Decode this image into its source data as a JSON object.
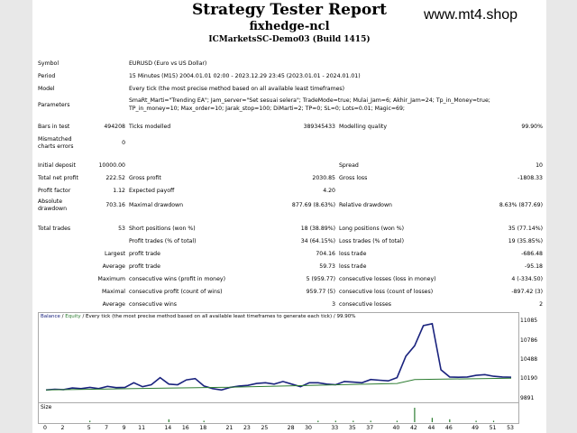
{
  "header": {
    "title": "Strategy Tester Report",
    "expert": "fixhedge-ncl",
    "server": "ICMarketsSC-Demo03 (Build 1415)",
    "watermark": "www.mt4.shop"
  },
  "settings": {
    "symbol_label": "Symbol",
    "symbol": "EURUSD (Euro vs US Dollar)",
    "period_label": "Period",
    "period": "15 Minutes (M15) 2004.01.01 02:00 - 2023.12.29 23:45 (2023.01.01 - 2024.01.01)",
    "model_label": "Model",
    "model": "Every tick (the most precise method based on all available least timeframes)",
    "params_label": "Parameters",
    "params_line1": "SmaRt_Marti=\"Trending EA\"; Jam_server=\"Set sesuai selera\"; TradeMode=true; Mulai_Jam=6; Akhir_Jam=24; Tp_in_Money=true;",
    "params_line2": "TP_in_money=10; Max_order=10; Jarak_stop=100; DiMarti=2; TP=0; SL=0; Lots=0.01; Magic=69;"
  },
  "quality": {
    "bars_label": "Bars in test",
    "bars": "494208",
    "ticks_label": "Ticks modelled",
    "ticks": "389345433",
    "mq_label": "Modelling quality",
    "mq": "99.90%",
    "mismatch_label1": "Mismatched",
    "mismatch_label2": "charts errors",
    "mismatch": "0"
  },
  "results": {
    "deposit_label": "Initial deposit",
    "deposit": "10000.00",
    "spread_label": "Spread",
    "spread": "10",
    "net_label": "Total net profit",
    "net": "222.52",
    "gp_label": "Gross profit",
    "gp": "2030.85",
    "gl_label": "Gross loss",
    "gl": "-1808.33",
    "pf_label": "Profit factor",
    "pf": "1.12",
    "ep_label": "Expected payoff",
    "ep": "4.20",
    "ad_label1": "Absolute",
    "ad_label2": "drawdown",
    "ad": "703.16",
    "md_label": "Maximal drawdown",
    "md": "877.69 (8.63%)",
    "rd_label": "Relative drawdown",
    "rd": "8.63% (877.69)"
  },
  "trades": {
    "total_label": "Total trades",
    "total": "53",
    "short_label": "Short positions (won %)",
    "short": "18 (38.89%)",
    "long_label": "Long positions (won %)",
    "long": "35 (77.14%)",
    "pt_label": "Profit trades (% of total)",
    "pt": "34 (64.15%)",
    "lt_label": "Loss trades (% of total)",
    "lt": "19 (35.85%)",
    "largest": "Largest",
    "average": "Average",
    "maximum": "Maximum",
    "maximal": "Maximal",
    "lpt_label": "profit trade",
    "lpt": "704.16",
    "llt_label": "loss trade",
    "llt": "-686.48",
    "apt_label": "profit trade",
    "apt": "59.73",
    "alt_label": "loss trade",
    "alt": "-95.18",
    "mcw_label": "consecutive wins (profit in money)",
    "mcw": "5 (959.77)",
    "mcl_label": "consecutive losses (loss in money)",
    "mcl": "4 (-334.50)",
    "mxw_label": "consecutive profit (count of wins)",
    "mxw": "959.77 (5)",
    "mxl_label": "consecutive loss (count of losses)",
    "mxl": "-897.42 (3)",
    "acw_label": "consecutive wins",
    "acw": "3",
    "acl_label": "consecutive losses",
    "acl": "2"
  },
  "chart": {
    "caption_balance": "Balance",
    "caption_sep": " / ",
    "caption_equity": "Equity",
    "caption_rest": " / Every tick (the most precise method based on all available least timeframes to generate each tick) / 99.90%",
    "size_label": "Size"
  },
  "chart_data": {
    "type": "line",
    "y_ticks": [
      "11085",
      "10786",
      "10488",
      "10190",
      "9891"
    ],
    "ylim": [
      9891,
      11085
    ],
    "x_ticks": [
      "0",
      "2",
      "5",
      "7",
      "9",
      "11",
      "14",
      "16",
      "18",
      "21",
      "23",
      "25",
      "28",
      "30",
      "33",
      "35",
      "37",
      "40",
      "42",
      "44",
      "46",
      "49",
      "51",
      "53"
    ],
    "xlim": [
      0,
      53
    ],
    "series": [
      {
        "name": "Balance",
        "color": "#1a237e",
        "x": [
          0,
          1,
          2,
          3,
          4,
          5,
          6,
          7,
          8,
          9,
          10,
          11,
          12,
          13,
          14,
          15,
          16,
          17,
          18,
          19,
          20,
          21,
          22,
          23,
          24,
          25,
          26,
          27,
          28,
          29,
          30,
          31,
          32,
          33,
          34,
          35,
          36,
          37,
          38,
          39,
          40,
          41,
          42,
          43,
          44,
          45,
          46,
          47,
          48,
          49,
          50,
          51,
          52,
          53
        ],
        "y": [
          10040,
          10050,
          10045,
          10070,
          10060,
          10080,
          10060,
          10095,
          10075,
          10080,
          10150,
          10090,
          10120,
          10230,
          10130,
          10120,
          10195,
          10215,
          10100,
          10060,
          10040,
          10080,
          10100,
          10110,
          10140,
          10150,
          10130,
          10170,
          10130,
          10090,
          10150,
          10150,
          10130,
          10120,
          10170,
          10160,
          10150,
          10200,
          10190,
          10180,
          10230,
          10560,
          10720,
          11030,
          11060,
          10350,
          10240,
          10235,
          10240,
          10265,
          10275,
          10250,
          10240,
          10235
        ]
      },
      {
        "name": "Equity",
        "color": "#2e7d32",
        "x": [
          0,
          10,
          20,
          30,
          40,
          42,
          53
        ],
        "y": [
          10040,
          10060,
          10080,
          10110,
          10140,
          10200,
          10220
        ]
      }
    ],
    "volume": {
      "x": [
        5,
        14,
        18,
        31,
        33,
        35,
        37,
        40,
        42,
        44,
        46,
        49,
        51
      ],
      "y": [
        1,
        2,
        1,
        1,
        1,
        1,
        1,
        1,
        10,
        3,
        2,
        1,
        1
      ]
    }
  }
}
